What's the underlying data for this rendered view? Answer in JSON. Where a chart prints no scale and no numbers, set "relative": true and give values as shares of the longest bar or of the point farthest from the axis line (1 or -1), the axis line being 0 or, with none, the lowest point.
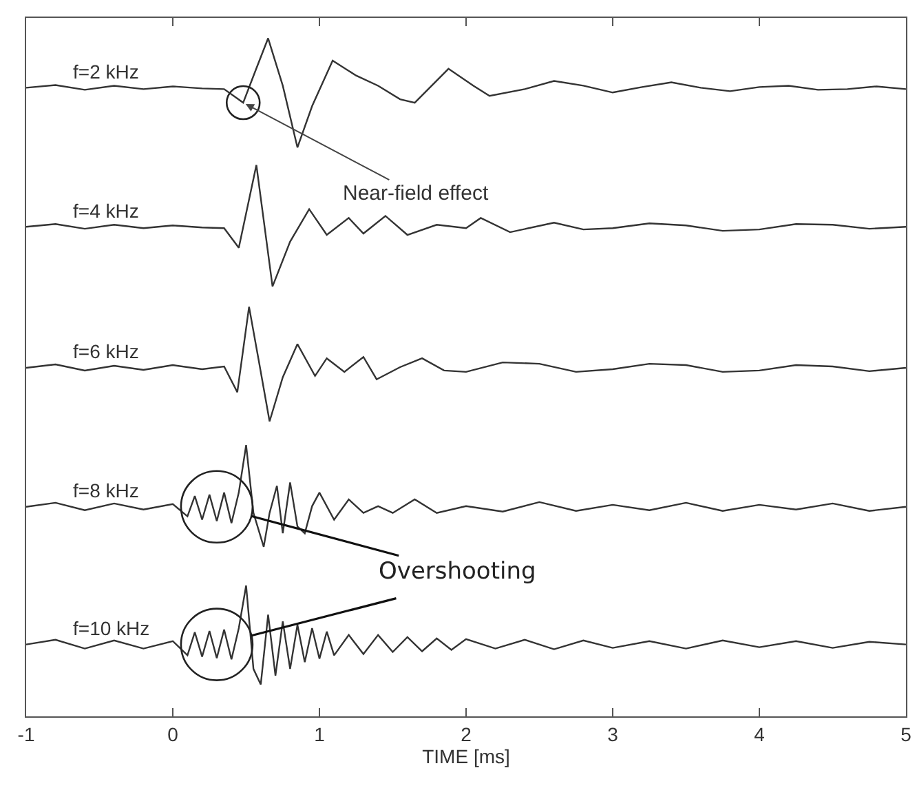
{
  "chart_data": {
    "type": "line",
    "relative": true,
    "xlabel": "TIME [ms]",
    "xlim": [
      -1,
      5
    ],
    "xticks": [
      -1,
      0,
      1,
      2,
      3,
      4,
      5
    ],
    "tick_labels": "x",
    "grid": false,
    "legend": false,
    "marker": "none",
    "line_style": "solid",
    "series": [
      {
        "name": "f=2 kHz",
        "color": "#333333",
        "x": [
          -1,
          -0.8,
          -0.6,
          -0.4,
          -0.2,
          0,
          0.2,
          0.35,
          0.48,
          0.56,
          0.65,
          0.75,
          0.85,
          0.95,
          1.09,
          1.25,
          1.4,
          1.55,
          1.65,
          1.88,
          2.05,
          2.16,
          2.4,
          2.6,
          2.8,
          3.0,
          3.2,
          3.4,
          3.6,
          3.8,
          4.0,
          4.2,
          4.4,
          4.6,
          4.8,
          5
        ],
        "values": [
          0.927,
          0.931,
          0.924,
          0.93,
          0.925,
          0.929,
          0.926,
          0.925,
          0.905,
          0.95,
          1.0,
          0.93,
          0.839,
          0.9,
          0.967,
          0.945,
          0.93,
          0.91,
          0.905,
          0.955,
          0.93,
          0.915,
          0.925,
          0.937,
          0.93,
          0.92,
          0.928,
          0.935,
          0.927,
          0.922,
          0.928,
          0.93,
          0.924,
          0.925,
          0.929,
          0.925
        ]
      },
      {
        "name": "f=4 kHz",
        "color": "#333333",
        "x": [
          -1,
          -0.8,
          -0.6,
          -0.4,
          -0.2,
          0,
          0.2,
          0.35,
          0.45,
          0.57,
          0.68,
          0.8,
          0.93,
          1.05,
          1.2,
          1.3,
          1.45,
          1.6,
          1.8,
          2.0,
          2.1,
          2.3,
          2.6,
          2.8,
          3.0,
          3.25,
          3.5,
          3.75,
          4.0,
          4.25,
          4.5,
          4.75,
          5
        ],
        "values": [
          0.722,
          0.726,
          0.719,
          0.725,
          0.72,
          0.724,
          0.721,
          0.72,
          0.691,
          0.813,
          0.634,
          0.7,
          0.748,
          0.71,
          0.735,
          0.712,
          0.738,
          0.71,
          0.725,
          0.72,
          0.735,
          0.714,
          0.728,
          0.718,
          0.72,
          0.727,
          0.724,
          0.716,
          0.718,
          0.726,
          0.725,
          0.719,
          0.722
        ]
      },
      {
        "name": "f=6 kHz",
        "color": "#333333",
        "x": [
          -1,
          -0.8,
          -0.6,
          -0.4,
          -0.2,
          0,
          0.2,
          0.35,
          0.44,
          0.52,
          0.59,
          0.66,
          0.75,
          0.85,
          0.97,
          1.05,
          1.17,
          1.3,
          1.39,
          1.55,
          1.7,
          1.85,
          2.0,
          2.25,
          2.5,
          2.75,
          3.0,
          3.25,
          3.5,
          3.75,
          4.0,
          4.25,
          4.5,
          4.75,
          5
        ],
        "values": [
          0.514,
          0.519,
          0.51,
          0.517,
          0.511,
          0.518,
          0.512,
          0.516,
          0.478,
          0.604,
          0.52,
          0.435,
          0.5,
          0.549,
          0.502,
          0.528,
          0.508,
          0.53,
          0.497,
          0.515,
          0.528,
          0.51,
          0.508,
          0.522,
          0.52,
          0.508,
          0.512,
          0.52,
          0.518,
          0.508,
          0.51,
          0.518,
          0.516,
          0.509,
          0.514
        ]
      },
      {
        "name": "f=8 kHz",
        "color": "#333333",
        "x": [
          -1,
          -0.8,
          -0.6,
          -0.4,
          -0.2,
          0,
          0.1,
          0.15,
          0.2,
          0.25,
          0.3,
          0.35,
          0.4,
          0.45,
          0.5,
          0.55,
          0.62,
          0.66,
          0.71,
          0.75,
          0.8,
          0.85,
          0.9,
          0.95,
          1.0,
          1.1,
          1.2,
          1.3,
          1.4,
          1.5,
          1.65,
          1.8,
          2.0,
          2.25,
          2.5,
          2.75,
          3.0,
          3.25,
          3.5,
          3.75,
          4.0,
          4.25,
          4.5,
          4.75,
          5
        ],
        "values": [
          0.309,
          0.315,
          0.304,
          0.314,
          0.305,
          0.313,
          0.295,
          0.325,
          0.29,
          0.327,
          0.288,
          0.33,
          0.285,
          0.33,
          0.4,
          0.3,
          0.25,
          0.3,
          0.34,
          0.27,
          0.345,
          0.28,
          0.27,
          0.31,
          0.33,
          0.29,
          0.32,
          0.3,
          0.31,
          0.3,
          0.32,
          0.3,
          0.31,
          0.302,
          0.316,
          0.303,
          0.312,
          0.304,
          0.315,
          0.303,
          0.312,
          0.305,
          0.314,
          0.303,
          0.309
        ]
      },
      {
        "name": "f=10 kHz",
        "color": "#333333",
        "x": [
          -1,
          -0.8,
          -0.6,
          -0.4,
          -0.2,
          0,
          0.1,
          0.15,
          0.2,
          0.25,
          0.3,
          0.35,
          0.4,
          0.45,
          0.5,
          0.55,
          0.6,
          0.65,
          0.7,
          0.75,
          0.8,
          0.85,
          0.9,
          0.95,
          1.0,
          1.05,
          1.1,
          1.2,
          1.3,
          1.4,
          1.5,
          1.6,
          1.7,
          1.8,
          1.9,
          2.0,
          2.2,
          2.4,
          2.6,
          2.8,
          3.0,
          3.25,
          3.5,
          3.75,
          4.0,
          4.25,
          4.5,
          4.75,
          5
        ],
        "values": [
          0.106,
          0.113,
          0.1,
          0.112,
          0.1,
          0.111,
          0.09,
          0.124,
          0.088,
          0.126,
          0.086,
          0.128,
          0.084,
          0.13,
          0.193,
          0.07,
          0.047,
          0.15,
          0.06,
          0.14,
          0.07,
          0.135,
          0.08,
          0.13,
          0.085,
          0.125,
          0.09,
          0.12,
          0.092,
          0.12,
          0.095,
          0.117,
          0.096,
          0.115,
          0.098,
          0.114,
          0.1,
          0.113,
          0.099,
          0.112,
          0.101,
          0.111,
          0.1,
          0.112,
          0.102,
          0.111,
          0.101,
          0.11,
          0.106
        ]
      }
    ],
    "annotations": [
      {
        "text": "Near-field effect",
        "x": 0.48,
        "y": 0.905
      },
      {
        "text": "Overshooting",
        "x": 0.3,
        "y": 0.309
      }
    ]
  }
}
